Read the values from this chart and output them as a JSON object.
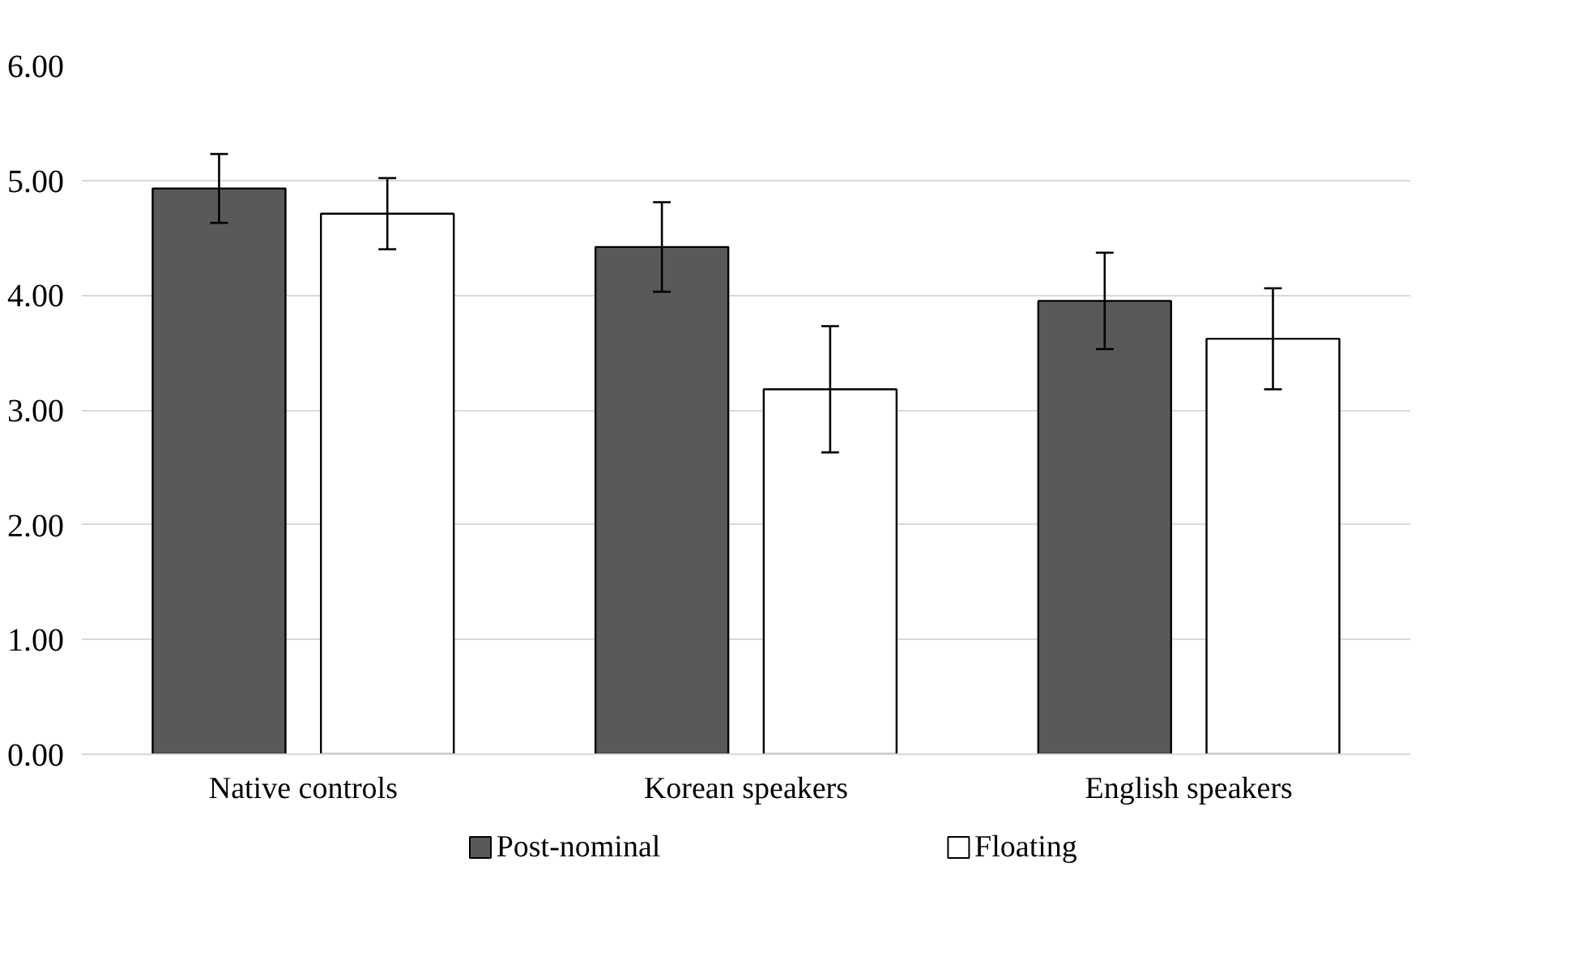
{
  "chart_data": {
    "type": "bar",
    "categories": [
      "Native controls",
      "Korean speakers",
      "English speakers"
    ],
    "series": [
      {
        "name": "Post-nominal",
        "color": "#595959",
        "values": [
          4.93,
          4.42,
          3.95
        ],
        "errors": [
          0.3,
          0.39,
          0.42
        ]
      },
      {
        "name": "Floating",
        "color": "#ffffff",
        "values": [
          4.71,
          3.18,
          3.62
        ],
        "errors": [
          0.31,
          0.55,
          0.44
        ]
      }
    ],
    "ylim": [
      0,
      6
    ],
    "yticks": [
      {
        "value": 0,
        "label": "0.00"
      },
      {
        "value": 1,
        "label": "1.00"
      },
      {
        "value": 2,
        "label": "2.00"
      },
      {
        "value": 3,
        "label": "3.00"
      },
      {
        "value": 4,
        "label": "4.00"
      },
      {
        "value": 5,
        "label": "5.00"
      },
      {
        "value": 6,
        "label": "6.00"
      }
    ],
    "grid": "y",
    "legend": "bottom"
  }
}
